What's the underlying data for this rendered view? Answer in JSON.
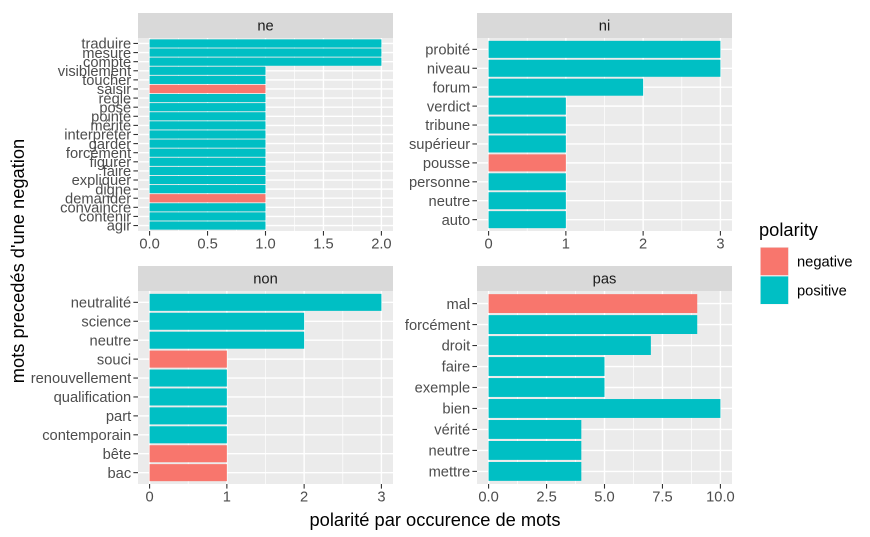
{
  "axes": {
    "xlabel": "polarité par occurence de mots",
    "ylabel": "mots precedés d'une negation"
  },
  "legend": {
    "title": "polarity",
    "position": "right",
    "entries": [
      {
        "label": "negative",
        "color": "#F8766D"
      },
      {
        "label": "positive",
        "color": "#00BFC4"
      }
    ]
  },
  "theme": {
    "panel_background": "#EBEBEB",
    "strip_background": "#D9D9D9",
    "grid_color": "#FFFFFF",
    "tick_color": "#333333",
    "legend_key_background": "#F2F2F2",
    "grid": true
  },
  "chart_data": [
    {
      "type": "bar",
      "orientation": "horizontal",
      "facet": "ne",
      "categories": [
        "traduire",
        "mesure",
        "compte",
        "visiblement",
        "toucher",
        "saisir",
        "règle",
        "posé",
        "pointe",
        "mérite",
        "interpréter",
        "garder",
        "forcément",
        "figurer",
        "faire",
        "expliquer",
        "digne",
        "demander",
        "convaincre",
        "contenir",
        "agir"
      ],
      "series": [
        {
          "name": "negative",
          "values": [
            null,
            null,
            null,
            null,
            null,
            1,
            null,
            null,
            null,
            null,
            null,
            null,
            null,
            null,
            null,
            null,
            null,
            1,
            null,
            null,
            null
          ]
        },
        {
          "name": "positive",
          "values": [
            2,
            2,
            2,
            1,
            1,
            null,
            1,
            1,
            1,
            1,
            1,
            1,
            1,
            1,
            1,
            1,
            1,
            null,
            1,
            1,
            1
          ]
        }
      ],
      "xlim": [
        -0.1,
        2.1
      ],
      "xticks": [
        0,
        0.5,
        1,
        1.5,
        2
      ],
      "xtick_labels": [
        "0.0",
        "0.5",
        "1.0",
        "1.5",
        "2.0"
      ]
    },
    {
      "type": "bar",
      "orientation": "horizontal",
      "facet": "ni",
      "categories": [
        "probité",
        "niveau",
        "forum",
        "verdict",
        "tribune",
        "supérieur",
        "pousse",
        "personne",
        "neutre",
        "auto"
      ],
      "series": [
        {
          "name": "negative",
          "values": [
            null,
            null,
            null,
            null,
            null,
            null,
            1,
            null,
            null,
            null
          ]
        },
        {
          "name": "positive",
          "values": [
            3,
            3,
            2,
            1,
            1,
            1,
            null,
            1,
            1,
            1
          ]
        }
      ],
      "xlim": [
        -0.15,
        3.15
      ],
      "xticks": [
        0,
        1,
        2,
        3
      ],
      "xtick_labels": [
        "0",
        "1",
        "2",
        "3"
      ]
    },
    {
      "type": "bar",
      "orientation": "horizontal",
      "facet": "non",
      "categories": [
        "neutralité",
        "science",
        "neutre",
        "souci",
        "renouvellement",
        "qualification",
        "part",
        "contemporain",
        "bête",
        "bac"
      ],
      "series": [
        {
          "name": "negative",
          "values": [
            null,
            null,
            null,
            1,
            null,
            null,
            null,
            null,
            1,
            1
          ]
        },
        {
          "name": "positive",
          "values": [
            3,
            2,
            2,
            null,
            1,
            1,
            1,
            1,
            null,
            null
          ]
        }
      ],
      "xlim": [
        -0.15,
        3.15
      ],
      "xticks": [
        0,
        1,
        2,
        3
      ],
      "xtick_labels": [
        "0",
        "1",
        "2",
        "3"
      ]
    },
    {
      "type": "bar",
      "orientation": "horizontal",
      "facet": "pas",
      "categories": [
        "mal",
        "forcément",
        "droit",
        "faire",
        "exemple",
        "bien",
        "vérité",
        "neutre",
        "mettre"
      ],
      "series": [
        {
          "name": "negative",
          "values": [
            9,
            null,
            null,
            null,
            null,
            null,
            null,
            null,
            null
          ]
        },
        {
          "name": "positive",
          "values": [
            null,
            9,
            7,
            5,
            5,
            10,
            4,
            4,
            4
          ]
        }
      ],
      "xlim": [
        -0.5,
        10.5
      ],
      "xticks": [
        0,
        2.5,
        5,
        7.5,
        10
      ],
      "xtick_labels": [
        "0.0",
        "2.5",
        "5.0",
        "7.5",
        "10.0"
      ]
    }
  ]
}
